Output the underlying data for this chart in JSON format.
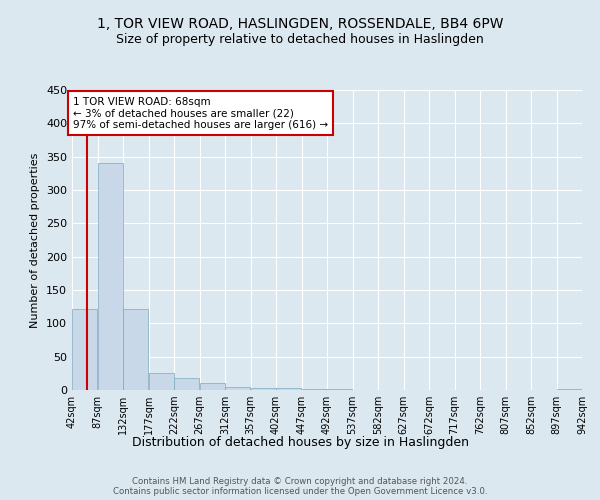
{
  "title": "1, TOR VIEW ROAD, HASLINGDEN, ROSSENDALE, BB4 6PW",
  "subtitle": "Size of property relative to detached houses in Haslingden",
  "xlabel": "Distribution of detached houses by size in Haslingden",
  "ylabel": "Number of detached properties",
  "bins": [
    42,
    87,
    132,
    177,
    222,
    267,
    312,
    357,
    402,
    447,
    492,
    537,
    582,
    627,
    672,
    717,
    762,
    807,
    852,
    897,
    942
  ],
  "bar_heights": [
    122,
    340,
    122,
    25,
    18,
    10,
    5,
    3,
    3,
    2,
    1,
    0,
    0,
    0,
    0,
    0,
    0,
    0,
    0,
    2
  ],
  "bar_color": "#c8d8e8",
  "bar_edge_color": "#7aaabf",
  "property_size": 68,
  "annotation_title": "1 TOR VIEW ROAD: 68sqm",
  "annotation_line1": "← 3% of detached houses are smaller (22)",
  "annotation_line2": "97% of semi-detached houses are larger (616) →",
  "marker_color": "#cc0000",
  "annotation_box_color": "#cc0000",
  "ylim": [
    0,
    450
  ],
  "yticks": [
    0,
    50,
    100,
    150,
    200,
    250,
    300,
    350,
    400,
    450
  ],
  "footer1": "Contains HM Land Registry data © Crown copyright and database right 2024.",
  "footer2": "Contains public sector information licensed under the Open Government Licence v3.0.",
  "background_color": "#dce8f0",
  "title_fontsize": 10,
  "subtitle_fontsize": 9
}
